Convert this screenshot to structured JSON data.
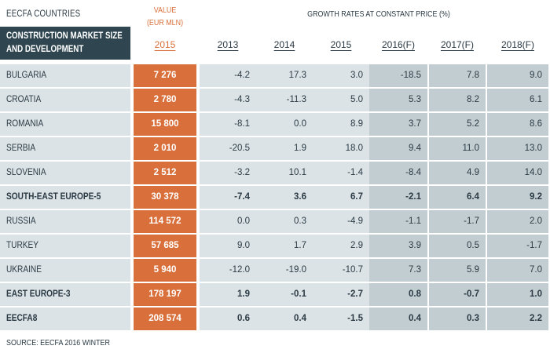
{
  "header": {
    "title": "EECFA COUNTRIES",
    "value_label_line1": "VALUE",
    "value_label_line2": "(EUR MLN)",
    "growth_label": "GROWTH RATES AT CONSTANT PRICE (%)",
    "table_label_line1": "CONSTRUCTION MARKET SIZE",
    "table_label_line2": "AND DEVELOPMENT"
  },
  "columns": {
    "value": "2015",
    "growth": [
      "2013",
      "2014",
      "2015",
      "2016(F)",
      "2017(F)",
      "2018(F)"
    ]
  },
  "rows": [
    {
      "country": "BULGARIA",
      "value": "7 276",
      "growth": [
        "-4.2",
        "17.3",
        "3.0",
        "-18.5",
        "7.8",
        "9.0"
      ]
    },
    {
      "country": "CROATIA",
      "value": "2 780",
      "growth": [
        "-4.3",
        "-11.3",
        "5.0",
        "5.3",
        "8.2",
        "6.1"
      ]
    },
    {
      "country": "ROMANIA",
      "value": "15 800",
      "growth": [
        "-8.1",
        "0.0",
        "8.9",
        "3.7",
        "5.2",
        "8.6"
      ]
    },
    {
      "country": "SERBIA",
      "value": "2 010",
      "growth": [
        "-20.5",
        "1.9",
        "18.0",
        "9.4",
        "11.0",
        "13.0"
      ]
    },
    {
      "country": "SLOVENIA",
      "value": "2 512",
      "growth": [
        "-3.2",
        "10.1",
        "-1.4",
        "-8.4",
        "4.9",
        "14.0"
      ]
    },
    {
      "country": "SOUTH-EAST EUROPE-5",
      "value": "30 378",
      "growth": [
        "-7.4",
        "3.6",
        "6.7",
        "-2.1",
        "6.4",
        "9.2"
      ],
      "bold": true
    },
    {
      "country": "RUSSIA",
      "value": "114 572",
      "growth": [
        "0.0",
        "0.3",
        "-4.9",
        "-1.1",
        "-1.7",
        "2.0"
      ]
    },
    {
      "country": "TURKEY",
      "value": "57 685",
      "growth": [
        "9.0",
        "1.7",
        "2.9",
        "3.9",
        "0.5",
        "-1.7"
      ]
    },
    {
      "country": "UKRAINE",
      "value": "5 940",
      "growth": [
        "-12.0",
        "-19.0",
        "-10.7",
        "7.3",
        "5.9",
        "7.0"
      ]
    },
    {
      "country": "EAST EUROPE-3",
      "value": "178 197",
      "growth": [
        "1.9",
        "-0.1",
        "-2.7",
        "0.8",
        "-0.7",
        "1.0"
      ],
      "bold": true
    },
    {
      "country": "EECFA8",
      "value": "208 574",
      "growth": [
        "0.6",
        "0.4",
        "-1.5",
        "0.4",
        "0.3",
        "2.2"
      ],
      "bold": true
    }
  ],
  "source": "SOURCE: EECFA 2016 WINTER",
  "colors": {
    "accent": "#d9703b",
    "header_dark": "#2f4650",
    "row_light": "#dbe3e6",
    "forecast_shade": "#c2cdd1"
  }
}
